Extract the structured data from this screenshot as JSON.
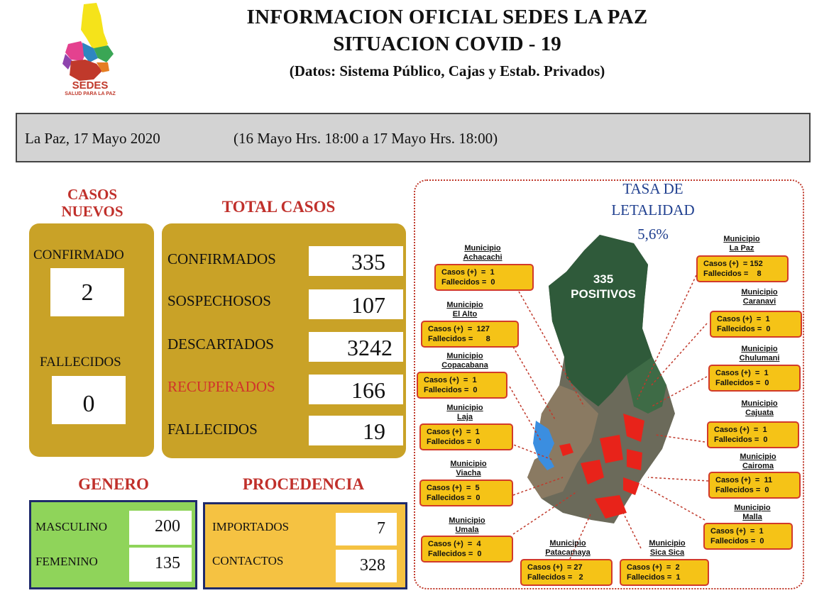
{
  "logo": {
    "name": "SEDES",
    "tagline": "SALUD PARA LA PAZ"
  },
  "header": {
    "title": "INFORMACION OFICIAL SEDES LA PAZ",
    "subtitle": "SITUACION  COVID - 19",
    "source": "(Datos: Sistema Público, Cajas y Estab. Privados)"
  },
  "datebar": {
    "date": "La Paz, 17 Mayo  2020",
    "range": "(16 Mayo Hrs. 18:00 a 17 Mayo Hrs. 18:00)"
  },
  "casos_nuevos": {
    "heading_1": "CASOS",
    "heading_2": "NUEVOS",
    "confirmado_label": "CONFIRMADO",
    "confirmado_value": "2",
    "fallecidos_label": "FALLECIDOS",
    "fallecidos_value": "0"
  },
  "total_casos": {
    "heading": "TOTAL CASOS",
    "rows": [
      {
        "label": "CONFIRMADOS",
        "value": "335"
      },
      {
        "label": "SOSPECHOSOS",
        "value": "107"
      },
      {
        "label": "DESCARTADOS",
        "value": "3242"
      },
      {
        "label": "RECUPERADOS",
        "value": "166"
      },
      {
        "label": "FALLECIDOS",
        "value": "19"
      }
    ]
  },
  "genero": {
    "heading": "GENERO",
    "rows": [
      {
        "label": "MASCULINO",
        "value": "200"
      },
      {
        "label": "FEMENINO",
        "value": "135"
      }
    ]
  },
  "procedencia": {
    "heading": "PROCEDENCIA",
    "rows": [
      {
        "label": "IMPORTADOS",
        "value": "7"
      },
      {
        "label": "CONTACTOS",
        "value": "328"
      }
    ]
  },
  "map": {
    "tasa_1": "TASA  DE",
    "tasa_2": "LETALIDAD",
    "tasa_value": "5,6%",
    "positivos_count": "335",
    "positivos_label": "POSITIVOS",
    "municipios": [
      {
        "title": "Municipio\nAchacachi",
        "casos": "Casos (+)  =  1",
        "fallecidos": "Fallecidos =  0"
      },
      {
        "title": "Municipio\nEl Alto",
        "casos": "Casos (+)  =  127",
        "fallecidos": "Fallecidos =      8"
      },
      {
        "title": "Municipio\nCopacabana",
        "casos": "Casos (+)  =  1",
        "fallecidos": "Fallecidos =  0"
      },
      {
        "title": "Municipio\nLaja",
        "casos": "Casos (+)  =  1",
        "fallecidos": "Fallecidos =  0"
      },
      {
        "title": "Municipio\nViacha",
        "casos": "Casos (+)  =  5",
        "fallecidos": "Fallecidos =  0"
      },
      {
        "title": "Municipio\nUmala",
        "casos": "Casos (+)  =  4",
        "fallecidos": "Fallecidos =  0"
      },
      {
        "title": "Municipio\nPatacamaya",
        "casos": "Casos (+)  = 27",
        "fallecidos": "Fallecidos =   2"
      },
      {
        "title": "Municipio\nSica Sica",
        "casos": "Casos (+)  =  2",
        "fallecidos": "Fallecidos =  1"
      },
      {
        "title": "Municipio\nMalla",
        "casos": "Casos (+)  =  1",
        "fallecidos": "Fallecidos =  0"
      },
      {
        "title": "Municipio\nCairoma",
        "casos": "Casos (+)  =  11",
        "fallecidos": "Fallecidos =  0"
      },
      {
        "title": "Municipio\nCajuata",
        "casos": "Casos (+)  =  1",
        "fallecidos": "Fallecidos =  0"
      },
      {
        "title": "Municipio\nChulumani",
        "casos": "Casos (+)  =  1",
        "fallecidos": "Fallecidos =  0"
      },
      {
        "title": "Municipio\nCaranavi",
        "casos": "Casos (+)  =  1",
        "fallecidos": "Fallecidos =  0"
      },
      {
        "title": "Municipio\nLa Paz",
        "casos": "Casos (+)  = 152",
        "fallecidos": "Fallecidos =    8"
      }
    ]
  },
  "colors": {
    "gold": "#c9a227",
    "heading_red": "#c0302b",
    "recuperados_red": "#d0332b",
    "genero_green": "#8fd45a",
    "procedencia_yellow": "#f5c242",
    "box_yellow": "#f5c317",
    "box_border": "#d23a2a",
    "tasa_blue": "#1f3f8f"
  }
}
